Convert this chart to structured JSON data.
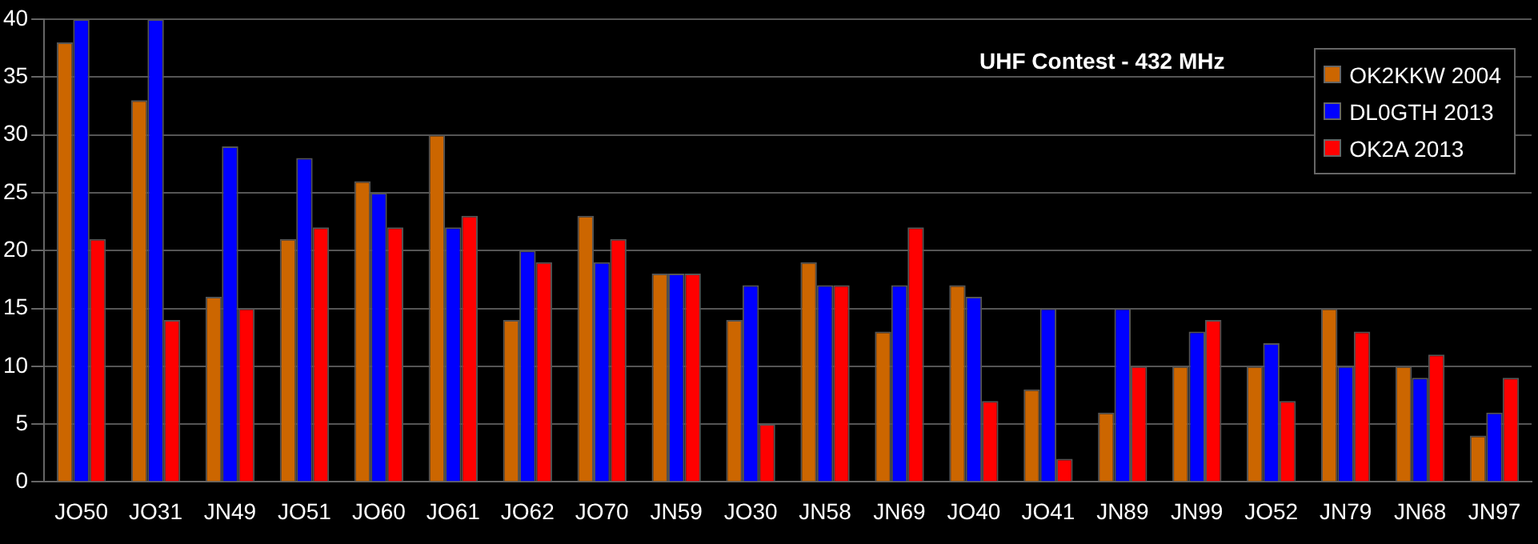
{
  "chart_data": {
    "type": "bar",
    "title": "UHF Contest - 432 MHz",
    "categories": [
      "JO50",
      "JO31",
      "JN49",
      "JO51",
      "JO60",
      "JO61",
      "JO62",
      "JO70",
      "JN59",
      "JO30",
      "JN58",
      "JN69",
      "JO40",
      "JO41",
      "JN89",
      "JN99",
      "JO52",
      "JN79",
      "JN68",
      "JN97"
    ],
    "series": [
      {
        "name": "OK2KKW 2004",
        "color": "#cc6600",
        "values": [
          38,
          33,
          16,
          21,
          26,
          30,
          14,
          23,
          18,
          14,
          19,
          13,
          17,
          8,
          6,
          10,
          10,
          15,
          10,
          4
        ]
      },
      {
        "name": "DL0GTH 2013",
        "color": "#0000ff",
        "values": [
          40,
          40,
          29,
          28,
          25,
          22,
          20,
          19,
          18,
          17,
          17,
          17,
          16,
          15,
          15,
          13,
          12,
          10,
          9,
          6
        ]
      },
      {
        "name": "OK2A 2013",
        "color": "#ff0000",
        "values": [
          21,
          14,
          15,
          22,
          22,
          23,
          19,
          21,
          18,
          5,
          17,
          22,
          7,
          2,
          10,
          14,
          7,
          13,
          11,
          9
        ]
      }
    ],
    "ylim": [
      0,
      40
    ],
    "yticks": [
      0,
      5,
      10,
      15,
      20,
      25,
      30,
      35,
      40
    ],
    "grid": "y",
    "legend": "top right"
  }
}
